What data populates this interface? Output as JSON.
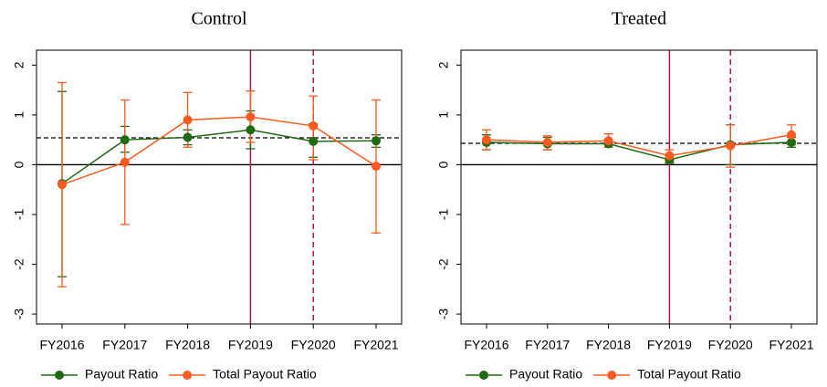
{
  "chart_data": [
    {
      "type": "line",
      "title": "Control",
      "categories": [
        "FY2016",
        "FY2017",
        "FY2018",
        "FY2019",
        "FY2020",
        "FY2021"
      ],
      "ylim": [
        -3.2,
        2.3
      ],
      "yticks": [
        -3,
        -2,
        -1,
        0,
        1,
        2
      ],
      "hlines": [
        {
          "y": 0,
          "style": "solid",
          "color": "#000000"
        },
        {
          "y": 0.54,
          "style": "dashed",
          "color": "#000000"
        }
      ],
      "vlines": [
        {
          "category": "FY2019",
          "style": "solid",
          "color": "#b8124d"
        },
        {
          "category": "FY2020",
          "style": "dashed",
          "color": "#b8124d"
        }
      ],
      "series": [
        {
          "name": "Payout Ratio",
          "color": "#1e6b12",
          "values": [
            -0.38,
            0.5,
            0.55,
            0.7,
            0.47,
            0.48
          ],
          "lower": [
            -2.25,
            0.25,
            0.4,
            0.32,
            0.15,
            0.35
          ],
          "upper": [
            1.47,
            0.77,
            0.7,
            1.08,
            0.82,
            0.6
          ]
        },
        {
          "name": "Total Payout Ratio",
          "color": "#ff5a1f",
          "values": [
            -0.4,
            0.05,
            0.9,
            0.96,
            0.78,
            -0.03
          ],
          "lower": [
            -2.45,
            -1.2,
            0.35,
            0.45,
            0.1,
            -1.37
          ],
          "upper": [
            1.65,
            1.3,
            1.45,
            1.48,
            1.38,
            1.3
          ]
        }
      ]
    },
    {
      "type": "line",
      "title": "Treated",
      "categories": [
        "FY2016",
        "FY2017",
        "FY2018",
        "FY2019",
        "FY2020",
        "FY2021"
      ],
      "ylim": [
        -3.2,
        2.3
      ],
      "yticks": [
        -3,
        -2,
        -1,
        0,
        1,
        2
      ],
      "hlines": [
        {
          "y": 0,
          "style": "solid",
          "color": "#000000"
        },
        {
          "y": 0.43,
          "style": "dashed",
          "color": "#000000"
        }
      ],
      "vlines": [
        {
          "category": "FY2019",
          "style": "solid",
          "color": "#b8124d"
        },
        {
          "category": "FY2020",
          "style": "dashed",
          "color": "#b8124d"
        }
      ],
      "series": [
        {
          "name": "Payout Ratio",
          "color": "#1e6b12",
          "values": [
            0.45,
            0.42,
            0.42,
            0.1,
            0.4,
            0.45
          ],
          "lower": [
            0.3,
            0.3,
            0.35,
            0.03,
            0.0,
            0.35
          ],
          "upper": [
            0.6,
            0.55,
            0.5,
            0.2,
            0.8,
            0.55
          ]
        },
        {
          "name": "Total Payout Ratio",
          "color": "#ff5a1f",
          "values": [
            0.5,
            0.45,
            0.48,
            0.18,
            0.38,
            0.6
          ],
          "lower": [
            0.3,
            0.3,
            0.35,
            0.05,
            -0.05,
            0.4
          ],
          "upper": [
            0.7,
            0.58,
            0.62,
            0.3,
            0.8,
            0.8
          ]
        }
      ]
    }
  ]
}
